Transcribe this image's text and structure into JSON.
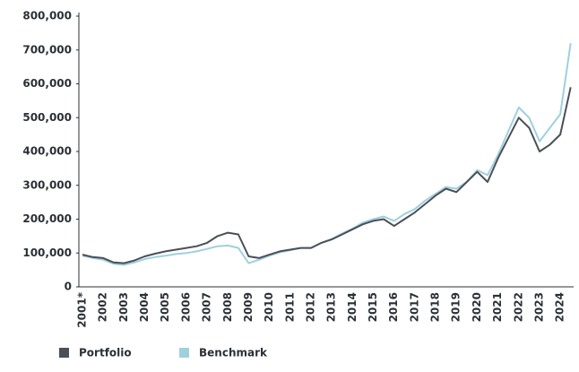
{
  "chart_data": {
    "type": "line",
    "categories": [
      "2001*",
      null,
      "2002",
      null,
      "2003",
      null,
      "2004",
      null,
      "2005",
      null,
      "2006",
      null,
      "2007",
      null,
      "2008",
      null,
      "2009",
      null,
      "2010",
      null,
      "2011",
      null,
      "2012",
      null,
      "2013",
      null,
      "2014",
      null,
      "2015",
      null,
      "2016",
      null,
      "2017",
      null,
      "2018",
      null,
      "2019",
      null,
      "2020",
      null,
      "2021",
      null,
      "2022",
      null,
      "2023",
      null,
      "2024",
      null
    ],
    "series": [
      {
        "name": "Benchmark",
        "color": "#9fd0de",
        "values": [
          92000,
          85000,
          80000,
          68000,
          65000,
          72000,
          82000,
          88000,
          92000,
          97000,
          100000,
          105000,
          112000,
          120000,
          122000,
          115000,
          70000,
          80000,
          92000,
          102000,
          108000,
          115000,
          115000,
          130000,
          142000,
          158000,
          172000,
          190000,
          200000,
          208000,
          195000,
          215000,
          230000,
          255000,
          275000,
          295000,
          290000,
          310000,
          345000,
          330000,
          390000,
          460000,
          530000,
          500000,
          430000,
          470000,
          510000,
          720000
        ]
      },
      {
        "name": "Portfolio",
        "color": "#4a4f57",
        "values": [
          95000,
          88000,
          85000,
          72000,
          70000,
          78000,
          90000,
          98000,
          105000,
          110000,
          115000,
          120000,
          130000,
          150000,
          160000,
          155000,
          90000,
          85000,
          95000,
          105000,
          110000,
          115000,
          115000,
          130000,
          140000,
          155000,
          170000,
          185000,
          195000,
          200000,
          180000,
          200000,
          220000,
          245000,
          270000,
          290000,
          280000,
          310000,
          340000,
          310000,
          380000,
          440000,
          500000,
          470000,
          400000,
          420000,
          450000,
          590000
        ]
      }
    ],
    "ylim": [
      0,
      800000
    ],
    "yticks": [
      0,
      {
        "value": 100000,
        "label": "100,000"
      },
      {
        "value": 200000,
        "label": "200,000"
      },
      {
        "value": 300000,
        "label": "300,000"
      },
      {
        "value": 400000,
        "label": "400,000"
      },
      {
        "value": 500000,
        "label": "500,000"
      },
      {
        "value": 600000,
        "label": "600,000"
      },
      {
        "value": 700000,
        "label": "700,000"
      },
      {
        "value": 800000,
        "label": "800,000"
      }
    ],
    "legend": "bottom-left"
  }
}
